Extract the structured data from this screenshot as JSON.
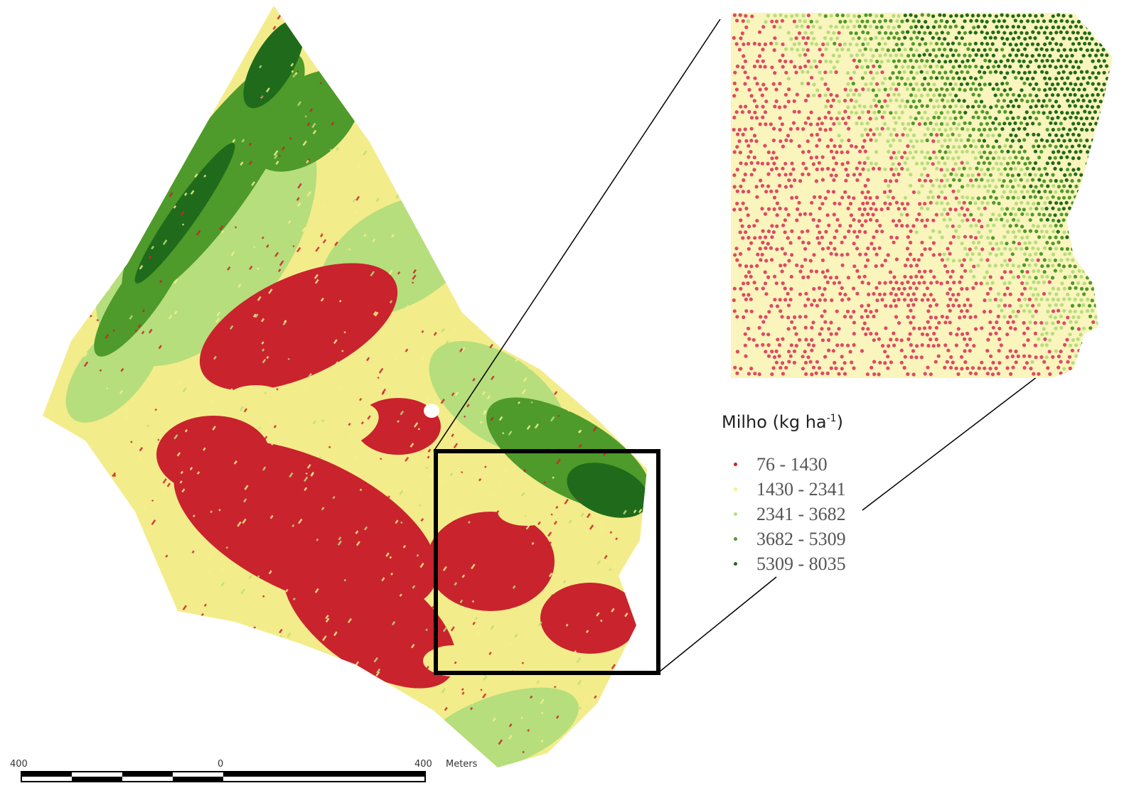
{
  "legend": {
    "title_main": "Milho (kg ha",
    "title_sup": "-1",
    "title_close": ")",
    "classes": [
      {
        "label": "76 - 1430",
        "color": "#c9232e"
      },
      {
        "label": "1430 - 2341",
        "color": "#f6f08a"
      },
      {
        "label": "2341 - 3682",
        "color": "#b6de7c"
      },
      {
        "label": "3682 - 5309",
        "color": "#4e9a2a"
      },
      {
        "label": "5309 - 8035",
        "color": "#1f6b1b"
      }
    ]
  },
  "scale_bar": {
    "left_label": "400",
    "center_label": "0",
    "right_label": "400",
    "unit_label": "Meters"
  },
  "colors": {
    "red": "#c9232e",
    "yellow": "#f6f08a",
    "light_green": "#b6de7c",
    "green": "#4e9a2a",
    "dark_green": "#1f6b1b",
    "inset_red": "#dd4a63",
    "inset_yellow": "#faf4bd",
    "frame": "#000000"
  }
}
